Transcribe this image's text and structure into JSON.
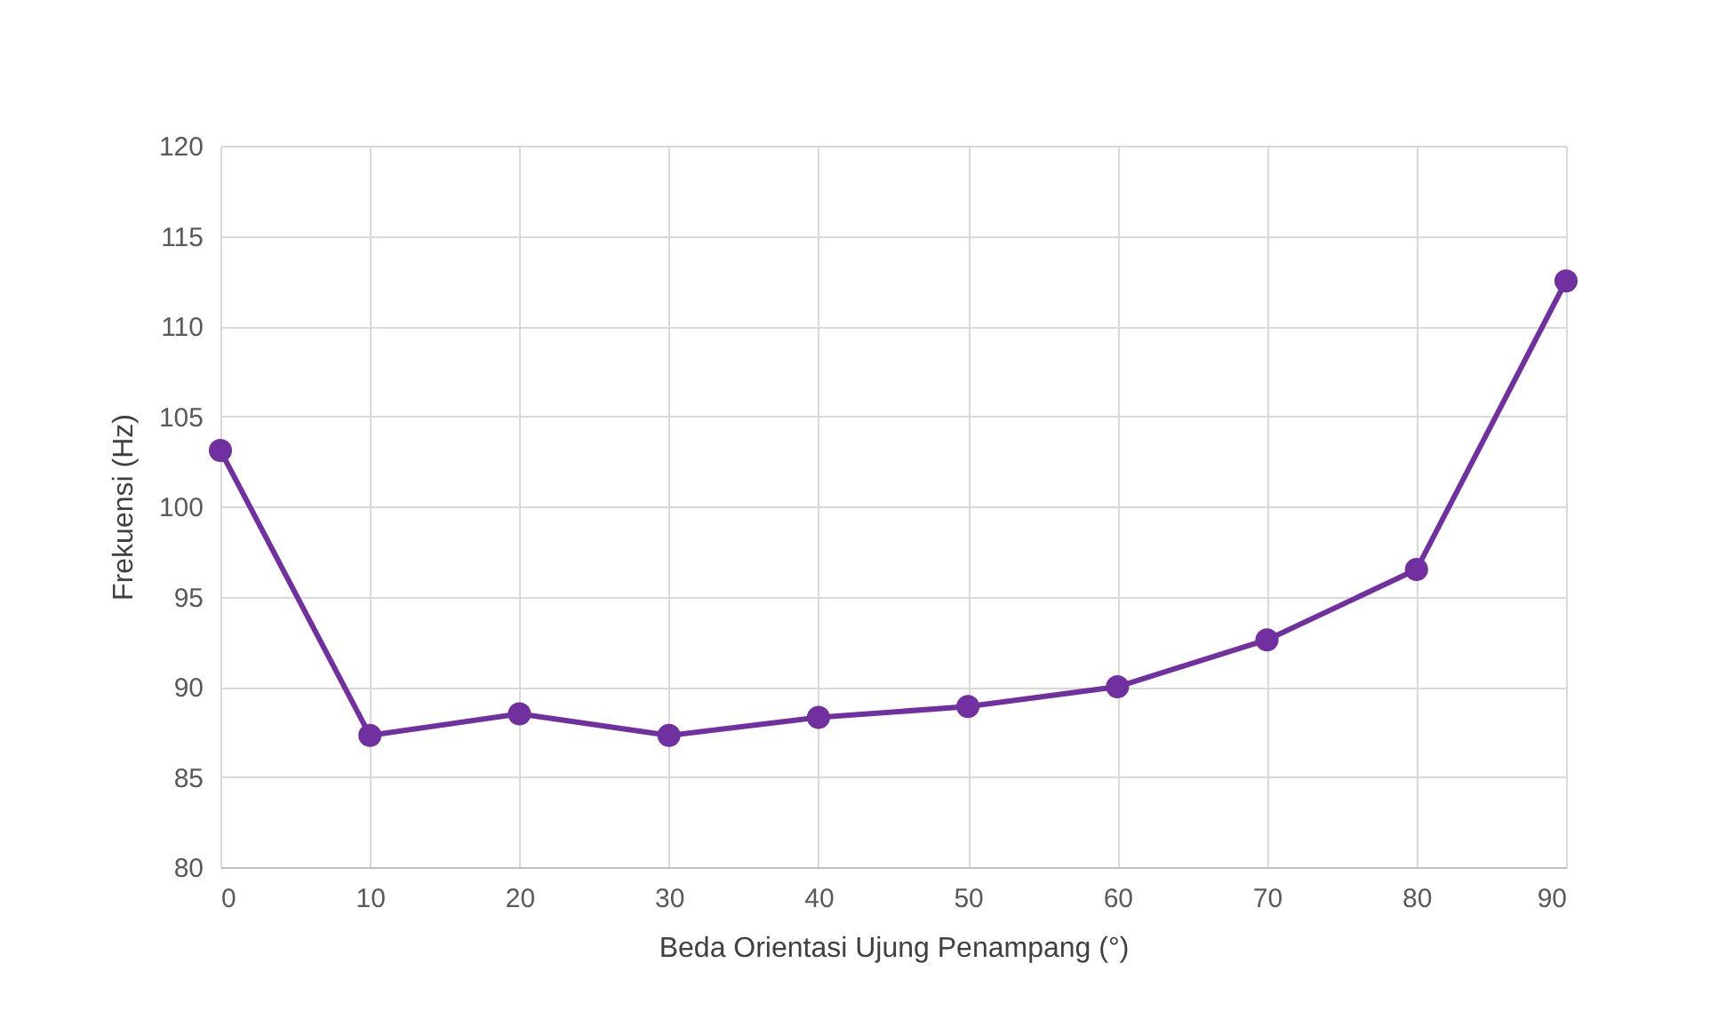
{
  "chart_data": {
    "type": "line",
    "xlabel": "Beda Orientasi Ujung Penampang (°)",
    "ylabel": "Frekuensi (Hz)",
    "x": [
      0,
      10,
      20,
      30,
      40,
      50,
      60,
      70,
      80,
      90
    ],
    "series": [
      {
        "color": "#7030a0",
        "values": [
          103.1,
          87.3,
          88.5,
          87.3,
          88.3,
          88.9,
          90.0,
          92.6,
          96.5,
          112.5
        ]
      }
    ],
    "xlim": [
      0,
      90
    ],
    "xticks": [
      0,
      10,
      20,
      30,
      40,
      50,
      60,
      70,
      80,
      90
    ],
    "ylim": [
      80,
      120
    ],
    "yticks": [
      80,
      85,
      90,
      95,
      100,
      105,
      110,
      115,
      120
    ],
    "grid": true,
    "marker": "circle",
    "line_style": "solid"
  }
}
